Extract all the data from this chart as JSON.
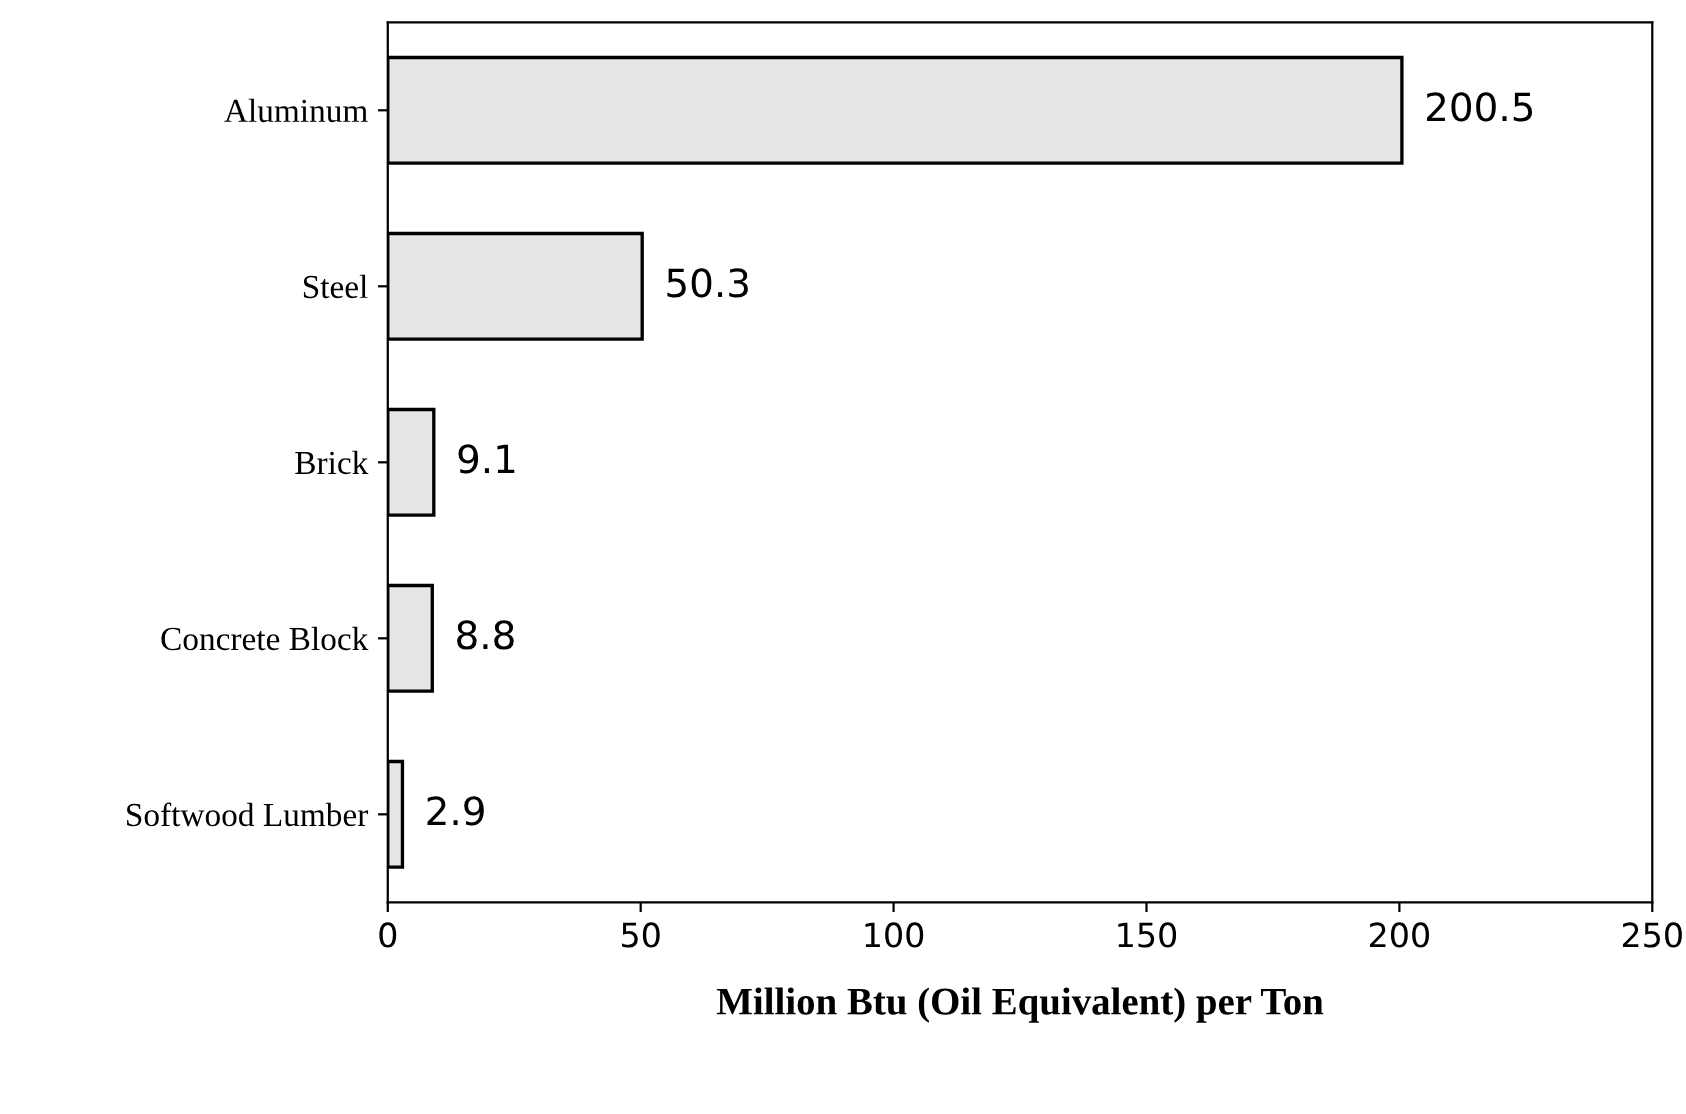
{
  "chart_data": {
    "type": "bar",
    "orientation": "horizontal",
    "xlabel": "Million Btu (Oil Equivalent) per Ton",
    "categories": [
      "Aluminum",
      "Steel",
      "Brick",
      "Concrete Block",
      "Softwood Lumber"
    ],
    "values": [
      200.5,
      50.3,
      9.1,
      8.8,
      2.9
    ],
    "color": "#e6e6e6",
    "xlim": [
      0,
      250
    ],
    "xticks": [
      0,
      50,
      100,
      150,
      200,
      250
    ],
    "data_labels": true,
    "grid": false
  }
}
